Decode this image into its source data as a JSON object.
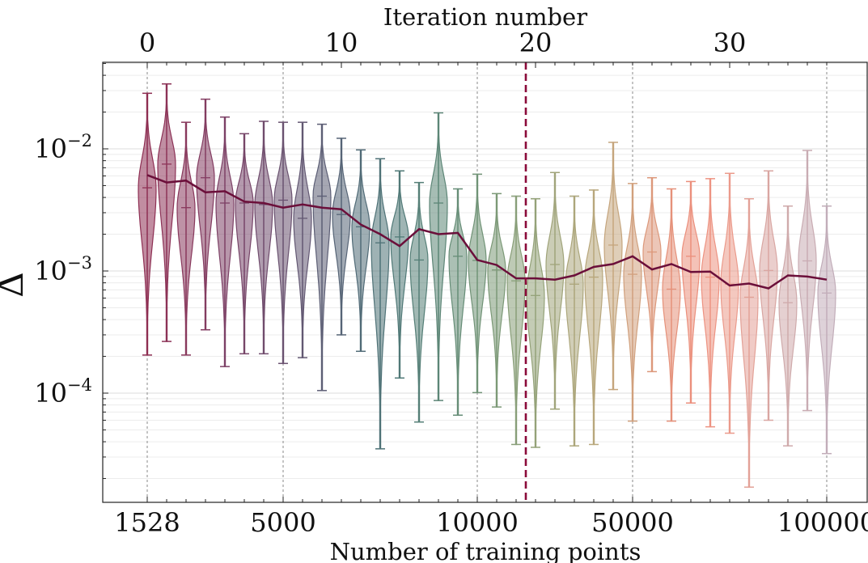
{
  "chart_data": {
    "type": "violin",
    "xlabel": "Number of training points",
    "x2label": "Iteration number",
    "ylabel": "Δ",
    "yscale": "log",
    "ylim": [
      1.2e-05,
      0.05
    ],
    "grid": "y-minor light, x dashed at labeled ticks",
    "x_tick_labels": [
      "1528",
      "5000",
      "10000",
      "50000",
      "100000"
    ],
    "x_tick_iterations": [
      0,
      7,
      17,
      25,
      35
    ],
    "top_tick_labels": [
      "0",
      "10",
      "20",
      "30"
    ],
    "top_tick_iterations": [
      0,
      10,
      20,
      30
    ],
    "y_tick_labels": [
      {
        "base": "10",
        "exp": "−2",
        "value": 0.01
      },
      {
        "base": "10",
        "exp": "−3",
        "value": 0.001
      },
      {
        "base": "10",
        "exp": "−4",
        "value": 0.0001
      }
    ],
    "cutoff_iteration": 19.5,
    "cutoff_color": "#8b0a3a",
    "mean_line_color": "#6b0f3a",
    "violins": [
      {
        "iteration": 0,
        "min": 0.000205,
        "max": 0.0285,
        "median": 0.0048,
        "mean": 0.0061,
        "color": "#8e2f53"
      },
      {
        "iteration": 1,
        "min": 0.000265,
        "max": 0.034,
        "median": 0.0075,
        "mean": 0.0053,
        "color": "#8c3357"
      },
      {
        "iteration": 2,
        "min": 0.000205,
        "max": 0.0165,
        "median": 0.0033,
        "mean": 0.0055,
        "color": "#88385c"
      },
      {
        "iteration": 3,
        "min": 0.00033,
        "max": 0.0255,
        "median": 0.0058,
        "mean": 0.0044,
        "color": "#833c61"
      },
      {
        "iteration": 4,
        "min": 0.000165,
        "max": 0.0182,
        "median": 0.0036,
        "mean": 0.0045,
        "color": "#7d4166"
      },
      {
        "iteration": 5,
        "min": 0.00021,
        "max": 0.0133,
        "median": 0.0036,
        "mean": 0.0037,
        "color": "#774669"
      },
      {
        "iteration": 6,
        "min": 0.00021,
        "max": 0.0168,
        "median": 0.0035,
        "mean": 0.0036,
        "color": "#704c6d"
      },
      {
        "iteration": 7,
        "min": 0.000175,
        "max": 0.0165,
        "median": 0.0038,
        "mean": 0.0033,
        "color": "#6a5270"
      },
      {
        "iteration": 8,
        "min": 0.000195,
        "max": 0.0165,
        "median": 0.0027,
        "mean": 0.0035,
        "color": "#635873"
      },
      {
        "iteration": 9,
        "min": 0.000105,
        "max": 0.0159,
        "median": 0.0041,
        "mean": 0.0033,
        "color": "#5c5e75"
      },
      {
        "iteration": 10,
        "min": 0.0003,
        "max": 0.0122,
        "median": 0.0029,
        "mean": 0.0032,
        "color": "#566476"
      },
      {
        "iteration": 11,
        "min": 0.00022,
        "max": 0.0098,
        "median": 0.0023,
        "mean": 0.0024,
        "color": "#516b77"
      },
      {
        "iteration": 12,
        "min": 3.5e-05,
        "max": 0.0083,
        "median": 0.0017,
        "mean": 0.002,
        "color": "#4f7277"
      },
      {
        "iteration": 13,
        "min": 0.000133,
        "max": 0.0066,
        "median": 0.0019,
        "mean": 0.0016,
        "color": "#507977"
      },
      {
        "iteration": 14,
        "min": 5.8e-05,
        "max": 0.0053,
        "median": 0.00123,
        "mean": 0.0022,
        "color": "#557f77"
      },
      {
        "iteration": 15,
        "min": 8.7e-05,
        "max": 0.0197,
        "median": 0.0036,
        "mean": 0.002,
        "color": "#5d8677"
      },
      {
        "iteration": 16,
        "min": 6.6e-05,
        "max": 0.0047,
        "median": 0.00132,
        "mean": 0.00205,
        "color": "#668d77"
      },
      {
        "iteration": 17,
        "min": 0.000101,
        "max": 0.0062,
        "median": 0.00122,
        "mean": 0.00123,
        "color": "#719377"
      },
      {
        "iteration": 18,
        "min": 7.7e-05,
        "max": 0.0043,
        "median": 0.00102,
        "mean": 0.00112,
        "color": "#7c9977"
      },
      {
        "iteration": 19,
        "min": 3.8e-05,
        "max": 0.0041,
        "median": 0.00083,
        "mean": 0.00087,
        "color": "#889e78"
      },
      {
        "iteration": 20,
        "min": 3.6e-05,
        "max": 0.0039,
        "median": 0.00063,
        "mean": 0.00087,
        "color": "#94a279"
      },
      {
        "iteration": 21,
        "min": 7.4e-05,
        "max": 0.0064,
        "median": 0.00113,
        "mean": 0.00085,
        "color": "#a0a47a"
      },
      {
        "iteration": 22,
        "min": 3.7e-05,
        "max": 0.0041,
        "median": 0.00078,
        "mean": 0.00092,
        "color": "#aca67b"
      },
      {
        "iteration": 23,
        "min": 3.8e-05,
        "max": 0.0046,
        "median": 0.00089,
        "mean": 0.00108,
        "color": "#b8a77c"
      },
      {
        "iteration": 24,
        "min": 0.000107,
        "max": 0.0113,
        "median": 0.00163,
        "mean": 0.00114,
        "color": "#c5a57d"
      },
      {
        "iteration": 25,
        "min": 5.9e-05,
        "max": 0.0052,
        "median": 0.00094,
        "mean": 0.00132,
        "color": "#d1a07d"
      },
      {
        "iteration": 26,
        "min": 0.00015,
        "max": 0.0058,
        "median": 0.00143,
        "mean": 0.00103,
        "color": "#dc987b"
      },
      {
        "iteration": 27,
        "min": 5.9e-05,
        "max": 0.0047,
        "median": 0.00071,
        "mean": 0.00114,
        "color": "#e5917a"
      },
      {
        "iteration": 28,
        "min": 8.3e-05,
        "max": 0.0054,
        "median": 0.00132,
        "mean": 0.00098,
        "color": "#eb8f7c"
      },
      {
        "iteration": 29,
        "min": 5.3e-05,
        "max": 0.0057,
        "median": 0.00089,
        "mean": 0.00099,
        "color": "#ed9382"
      },
      {
        "iteration": 30,
        "min": 4.7e-05,
        "max": 0.0063,
        "median": 0.00078,
        "mean": 0.00076,
        "color": "#eb9a8b"
      },
      {
        "iteration": 31,
        "min": 1.7e-05,
        "max": 0.0039,
        "median": 0.00061,
        "mean": 0.00079,
        "color": "#e3a197"
      },
      {
        "iteration": 32,
        "min": 6e-05,
        "max": 0.0066,
        "median": 0.00101,
        "mean": 0.00072,
        "color": "#d9a6a2"
      },
      {
        "iteration": 33,
        "min": 3.7e-05,
        "max": 0.0034,
        "median": 0.00055,
        "mean": 0.00092,
        "color": "#cfaaab"
      },
      {
        "iteration": 34,
        "min": 7.2e-05,
        "max": 0.0097,
        "median": 0.00121,
        "mean": 0.0009,
        "color": "#c9acb3"
      },
      {
        "iteration": 35,
        "min": 3.2e-05,
        "max": 0.0034,
        "median": 0.00066,
        "mean": 0.00085,
        "color": "#c2adb9"
      }
    ]
  }
}
